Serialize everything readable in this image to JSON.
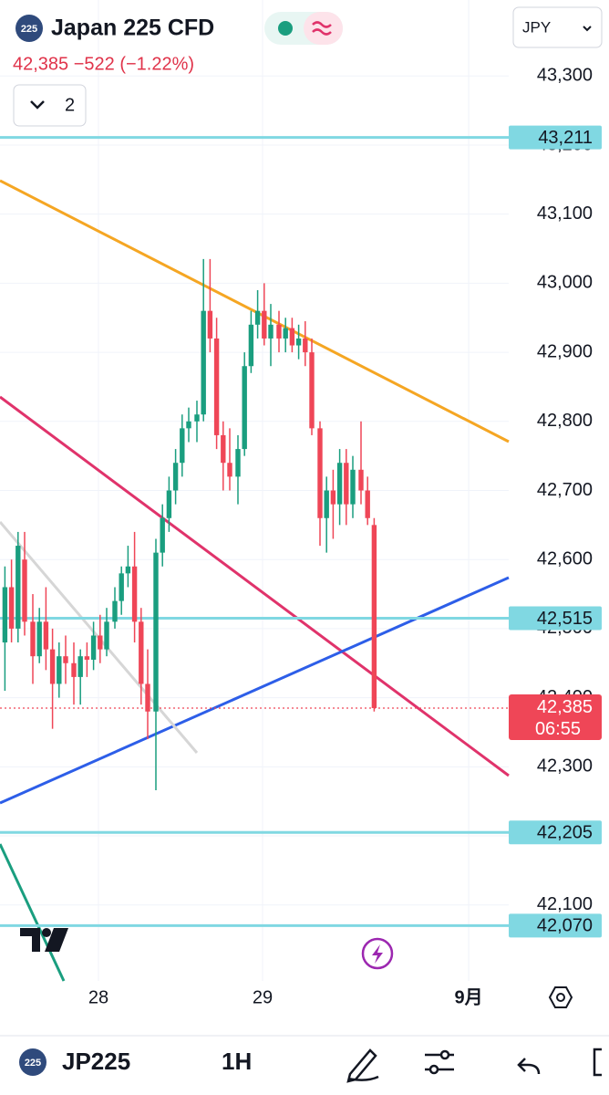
{
  "header": {
    "logo": "225",
    "title": "Japan 225 CFD",
    "quote": "42,385 −522 (−1.22%)",
    "indicator_count": "2",
    "currency": "JPY"
  },
  "chart_data": {
    "type": "candlestick",
    "x": [
      27.43,
      27.47,
      27.51,
      27.55,
      27.6,
      27.64,
      27.68,
      27.72,
      27.76,
      27.8,
      27.85,
      27.89,
      27.93,
      27.97,
      28.01,
      28.05,
      28.1,
      28.14,
      28.18,
      28.22,
      28.26,
      28.3,
      28.35,
      28.39,
      28.43,
      28.47,
      28.51,
      28.55,
      28.6,
      28.64,
      28.68,
      28.72,
      28.76,
      28.8,
      28.85,
      28.89,
      28.93,
      28.97,
      29.01,
      29.05,
      29.1,
      29.14,
      29.18,
      29.22,
      29.26,
      29.3,
      29.35,
      29.39,
      29.43,
      29.47,
      29.51,
      29.55,
      29.6,
      29.64,
      29.68
    ],
    "open": [
      42480,
      42560,
      42500,
      42600,
      42510,
      42460,
      42510,
      42470,
      42420,
      42460,
      42450,
      42430,
      42460,
      42455,
      42490,
      42470,
      42510,
      42540,
      42580,
      42590,
      42510,
      42420,
      42380,
      42610,
      42660,
      42700,
      42740,
      42790,
      42800,
      42810,
      42960,
      42920,
      42780,
      42740,
      42720,
      42760,
      42880,
      42940,
      42960,
      42920,
      42940,
      42920,
      42935,
      42910,
      42920,
      42900,
      42790,
      42660,
      42700,
      42680,
      42740,
      42680,
      42730,
      42700,
      42650
    ],
    "high": [
      42590,
      42600,
      42640,
      42640,
      42550,
      42530,
      42560,
      42500,
      42480,
      42490,
      42480,
      42470,
      42480,
      42510,
      42520,
      42530,
      42560,
      42590,
      42620,
      42640,
      42530,
      42470,
      42630,
      42680,
      42720,
      42760,
      42810,
      42820,
      42830,
      43035,
      43035,
      42950,
      42800,
      42790,
      42780,
      42900,
      42960,
      42990,
      43000,
      42970,
      42960,
      42950,
      42950,
      42940,
      42945,
      42920,
      42800,
      42720,
      42730,
      42760,
      42760,
      42750,
      42800,
      42720,
      42660
    ],
    "low": [
      42410,
      42480,
      42480,
      42490,
      42420,
      42450,
      42440,
      42355,
      42400,
      42420,
      42390,
      42390,
      42430,
      42440,
      42450,
      42460,
      42500,
      42520,
      42560,
      42480,
      42390,
      42340,
      42266,
      42590,
      42640,
      42680,
      42720,
      42770,
      42770,
      42800,
      42900,
      42760,
      42700,
      42700,
      42680,
      42750,
      42870,
      42920,
      42910,
      42880,
      42900,
      42900,
      42900,
      42890,
      42880,
      42780,
      42620,
      42610,
      42630,
      42650,
      42650,
      42660,
      42680,
      42650,
      42380
    ],
    "close": [
      42560,
      42500,
      42620,
      42510,
      42460,
      42510,
      42470,
      42420,
      42460,
      42450,
      42430,
      42460,
      42455,
      42490,
      42470,
      42510,
      42540,
      42580,
      42590,
      42510,
      42420,
      42380,
      42610,
      42660,
      42700,
      42740,
      42790,
      42800,
      42810,
      42960,
      42920,
      42780,
      42740,
      42720,
      42760,
      42880,
      42940,
      42960,
      42920,
      42940,
      42920,
      42935,
      42910,
      42920,
      42900,
      42790,
      42660,
      42700,
      42680,
      42740,
      42680,
      42730,
      42700,
      42660,
      42385
    ],
    "up_color": "#1a9e7f",
    "down_color": "#ef4657",
    "xlim": [
      27.4,
      30.5
    ],
    "xticks": [
      28,
      29,
      {
        "value": 30.256,
        "label": "9月"
      }
    ],
    "ylim": [
      41990,
      43410
    ],
    "yticks": [
      {
        "value": 43300,
        "label": "43,300"
      },
      {
        "value": 43200,
        "label": "43,200"
      },
      {
        "value": 43100,
        "label": "43,100"
      },
      {
        "value": 43000,
        "label": "43,000"
      },
      {
        "value": 42900,
        "label": "42,900"
      },
      {
        "value": 42800,
        "label": "42,800"
      },
      {
        "value": 42700,
        "label": "42,700"
      },
      {
        "value": 42600,
        "label": "42,600"
      },
      {
        "value": 42500,
        "label": "42,500"
      },
      {
        "value": 42400,
        "label": "42,400"
      },
      {
        "value": 42300,
        "label": "42,300"
      },
      {
        "value": 42200,
        "label": "42,200"
      },
      {
        "value": 42100,
        "label": "42,100"
      }
    ],
    "grid": true,
    "levels": [
      {
        "value": 43211,
        "label": "43,211"
      },
      {
        "value": 42515,
        "label": "42,515"
      },
      {
        "value": 42205,
        "label": "42,205"
      },
      {
        "value": 42070,
        "label": "42,070"
      }
    ],
    "level_color": "#80d8e2",
    "last_price": {
      "value": 42385,
      "label": "42,385",
      "countdown": "06:55"
    }
  },
  "toolbar": {
    "logo": "225",
    "symbol": "JP225",
    "interval": "1H"
  }
}
